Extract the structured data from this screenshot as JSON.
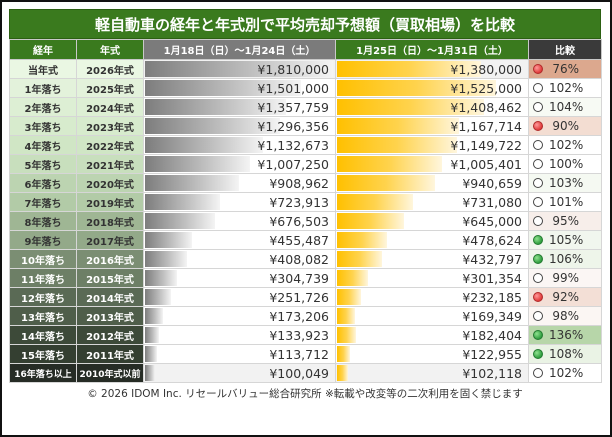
{
  "title": "軽自動車の経年と年式別で平均売却予想額（買取相場）を比較",
  "headers": {
    "age": "経年",
    "year": "年式",
    "period1": "1月18日（日）～1月24日（土）",
    "period2": "1月25日（日）～1月31日（土）",
    "compare": "比較"
  },
  "colors": {
    "title_bg": "#3a7a1e",
    "period1_header": "#7b7b7b",
    "compare_header": "#3a3a3a",
    "bar1": "#8a8a8a",
    "bar2": "#ffc000",
    "up": "#2f9e3f",
    "down": "#e03a3a"
  },
  "chart_data": {
    "type": "table",
    "title": "軽自動車の経年と年式別で平均売却予想額（買取相場）を比較",
    "columns": [
      "経年",
      "年式",
      "1月18日（日）～1月24日（土）",
      "1月25日（日）～1月31日（土）",
      "比較"
    ],
    "bar_max": 1810000,
    "rows": [
      {
        "age": "当年式",
        "year": "2026年式",
        "p1": 1810000,
        "p1_text": "¥1,810,000",
        "p2": 1380000,
        "p2_text": "¥1,380,000",
        "ratio": "76%",
        "mark": "red",
        "label_bg": "#eaf7e3",
        "label_fg": "#333",
        "cmp_bg": "#dca88e"
      },
      {
        "age": "1年落ち",
        "year": "2025年式",
        "p1": 1501000,
        "p1_text": "¥1,501,000",
        "p2": 1525000,
        "p2_text": "¥1,525,000",
        "ratio": "102%",
        "mark": "none",
        "label_bg": "#e3f2db",
        "label_fg": "#333",
        "cmp_bg": "#ffffff"
      },
      {
        "age": "2年落ち",
        "year": "2024年式",
        "p1": 1357759,
        "p1_text": "¥1,357,759",
        "p2": 1408462,
        "p2_text": "¥1,408,462",
        "ratio": "104%",
        "mark": "none",
        "label_bg": "#ddefd4",
        "label_fg": "#333",
        "cmp_bg": "#f7faf4"
      },
      {
        "age": "3年落ち",
        "year": "2023年式",
        "p1": 1296356,
        "p1_text": "¥1,296,356",
        "p2": 1167714,
        "p2_text": "¥1,167,714",
        "ratio": "90%",
        "mark": "red",
        "label_bg": "#d7ebcd",
        "label_fg": "#333",
        "cmp_bg": "#f3ddd2"
      },
      {
        "age": "4年落ち",
        "year": "2022年式",
        "p1": 1132673,
        "p1_text": "¥1,132,673",
        "p2": 1149722,
        "p2_text": "¥1,149,722",
        "ratio": "102%",
        "mark": "none",
        "label_bg": "#d0e6c5",
        "label_fg": "#333",
        "cmp_bg": "#ffffff"
      },
      {
        "age": "5年落ち",
        "year": "2021年式",
        "p1": 1007250,
        "p1_text": "¥1,007,250",
        "p2": 1005401,
        "p2_text": "¥1,005,401",
        "ratio": "100%",
        "mark": "none",
        "label_bg": "#c8dfbd",
        "label_fg": "#333",
        "cmp_bg": "#ffffff"
      },
      {
        "age": "6年落ち",
        "year": "2020年式",
        "p1": 908962,
        "p1_text": "¥908,962",
        "p2": 940659,
        "p2_text": "¥940,659",
        "ratio": "103%",
        "mark": "none",
        "label_bg": "#bcd4b1",
        "label_fg": "#333",
        "cmp_bg": "#f5f9f2"
      },
      {
        "age": "7年落ち",
        "year": "2019年式",
        "p1": 723913,
        "p1_text": "¥723,913",
        "p2": 731080,
        "p2_text": "¥731,080",
        "ratio": "101%",
        "mark": "none",
        "label_bg": "#b2cba7",
        "label_fg": "#333",
        "cmp_bg": "#ffffff"
      },
      {
        "age": "8年落ち",
        "year": "2018年式",
        "p1": 676503,
        "p1_text": "¥676,503",
        "p2": 645000,
        "p2_text": "¥645,000",
        "ratio": "95%",
        "mark": "none",
        "label_bg": "#9fb694",
        "label_fg": "#333",
        "cmp_bg": "#f7eeea"
      },
      {
        "age": "9年落ち",
        "year": "2017年式",
        "p1": 455487,
        "p1_text": "¥455,487",
        "p2": 478624,
        "p2_text": "¥478,624",
        "ratio": "105%",
        "mark": "green",
        "label_bg": "#93a989",
        "label_fg": "#333",
        "cmp_bg": "#f1f6ee"
      },
      {
        "age": "10年落ち",
        "year": "2016年式",
        "p1": 408082,
        "p1_text": "¥408,082",
        "p2": 432797,
        "p2_text": "¥432,797",
        "ratio": "106%",
        "mark": "green",
        "label_bg": "#7b8e73",
        "label_fg": "#ffffff",
        "cmp_bg": "#eef5ea"
      },
      {
        "age": "11年落ち",
        "year": "2015年式",
        "p1": 304739,
        "p1_text": "¥304,739",
        "p2": 301354,
        "p2_text": "¥301,354",
        "ratio": "99%",
        "mark": "none",
        "label_bg": "#6d7f66",
        "label_fg": "#ffffff",
        "cmp_bg": "#fbf6f4"
      },
      {
        "age": "12年落ち",
        "year": "2014年式",
        "p1": 251726,
        "p1_text": "¥251,726",
        "p2": 232185,
        "p2_text": "¥232,185",
        "ratio": "92%",
        "mark": "red",
        "label_bg": "#5a6a55",
        "label_fg": "#ffffff",
        "cmp_bg": "#f3dfd6"
      },
      {
        "age": "13年落ち",
        "year": "2013年式",
        "p1": 173206,
        "p1_text": "¥173,206",
        "p2": 169349,
        "p2_text": "¥169,349",
        "ratio": "98%",
        "mark": "none",
        "label_bg": "#4f5e4a",
        "label_fg": "#ffffff",
        "cmp_bg": "#fbf6f3"
      },
      {
        "age": "14年落ち",
        "year": "2012年式",
        "p1": 133923,
        "p1_text": "¥133,923",
        "p2": 182404,
        "p2_text": "¥182,404",
        "ratio": "136%",
        "mark": "green",
        "label_bg": "#3d4a39",
        "label_fg": "#ffffff",
        "cmp_bg": "#b7d6a9"
      },
      {
        "age": "15年落ち",
        "year": "2011年式",
        "p1": 113712,
        "p1_text": "¥113,712",
        "p2": 122955,
        "p2_text": "¥122,955",
        "ratio": "108%",
        "mark": "green",
        "label_bg": "#343f31",
        "label_fg": "#ffffff",
        "cmp_bg": "#eaf3e5"
      },
      {
        "age": "16年落ち以上",
        "year": "2010年式以前",
        "p1": 100049,
        "p1_text": "¥100,049",
        "p2": 102118,
        "p2_text": "¥102,118",
        "ratio": "102%",
        "mark": "none",
        "label_bg": "#262c25",
        "label_fg": "#ffffff",
        "cmp_bg": "#ffffff"
      }
    ]
  },
  "footer": "© 2026 IDOM Inc. リセールバリュー総合研究所 ※転載や改変等の二次利用を固く禁じます"
}
